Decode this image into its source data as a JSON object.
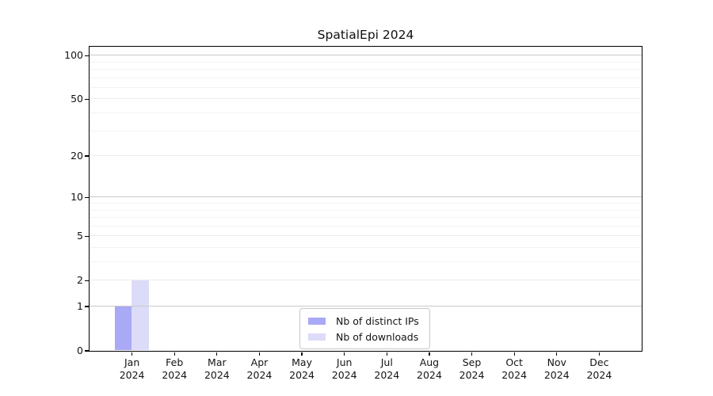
{
  "chart_data": {
    "type": "bar",
    "title": "SpatialEpi 2024",
    "months": [
      "Jan",
      "Feb",
      "Mar",
      "Apr",
      "May",
      "Jun",
      "Jul",
      "Aug",
      "Sep",
      "Oct",
      "Nov",
      "Dec"
    ],
    "year": "2024",
    "series": [
      {
        "name": "Nb of distinct IPs",
        "color": "#a9a9f6",
        "values": [
          1,
          0,
          0,
          0,
          0,
          0,
          0,
          0,
          0,
          0,
          0,
          0
        ]
      },
      {
        "name": "Nb of downloads",
        "color": "#dcdcf8",
        "values": [
          2,
          0,
          0,
          0,
          0,
          0,
          0,
          0,
          0,
          0,
          0,
          0
        ]
      }
    ],
    "y_ticks": [
      0,
      1,
      2,
      5,
      10,
      20,
      50,
      100
    ],
    "y_minor_ticks": [
      3,
      4,
      6,
      7,
      8,
      9,
      30,
      40,
      60,
      70,
      80,
      90
    ],
    "y_scale": "log1p",
    "ylim": [
      0,
      115
    ],
    "grid": "horizontal",
    "legend_position": "bottom-center",
    "axis_color": "#000000",
    "major_grid_color": "#c9c9c9",
    "mid_grid_color": "#ececec",
    "minor_grid_color": "#f3f3f3"
  }
}
